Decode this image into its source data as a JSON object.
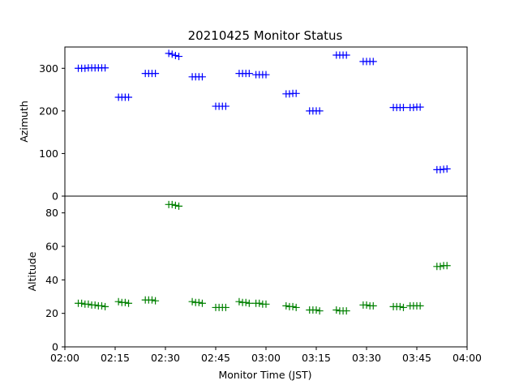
{
  "title": "20210425 Monitor Status",
  "chart_data": [
    {
      "type": "scatter",
      "marker": "+",
      "ylabel": "Azimuth",
      "ylim": [
        0,
        350
      ],
      "yticks": [
        "0",
        "100",
        "200",
        "300"
      ],
      "color": "#0000ff",
      "points": [
        {
          "x": "02:04",
          "y": 300
        },
        {
          "x": "02:05",
          "y": 300
        },
        {
          "x": "02:06",
          "y": 300
        },
        {
          "x": "02:07",
          "y": 301
        },
        {
          "x": "02:08",
          "y": 301
        },
        {
          "x": "02:09",
          "y": 301
        },
        {
          "x": "02:10",
          "y": 301
        },
        {
          "x": "02:11",
          "y": 301
        },
        {
          "x": "02:12",
          "y": 301
        },
        {
          "x": "02:16",
          "y": 232
        },
        {
          "x": "02:17",
          "y": 232
        },
        {
          "x": "02:18",
          "y": 232
        },
        {
          "x": "02:19",
          "y": 232
        },
        {
          "x": "02:24",
          "y": 288
        },
        {
          "x": "02:25",
          "y": 288
        },
        {
          "x": "02:26",
          "y": 288
        },
        {
          "x": "02:27",
          "y": 288
        },
        {
          "x": "02:31",
          "y": 335
        },
        {
          "x": "02:32",
          "y": 333
        },
        {
          "x": "02:33",
          "y": 330
        },
        {
          "x": "02:34",
          "y": 328
        },
        {
          "x": "02:38",
          "y": 280
        },
        {
          "x": "02:39",
          "y": 280
        },
        {
          "x": "02:40",
          "y": 280
        },
        {
          "x": "02:41",
          "y": 280
        },
        {
          "x": "02:45",
          "y": 211
        },
        {
          "x": "02:46",
          "y": 211
        },
        {
          "x": "02:47",
          "y": 211
        },
        {
          "x": "02:48",
          "y": 211
        },
        {
          "x": "02:52",
          "y": 288
        },
        {
          "x": "02:53",
          "y": 288
        },
        {
          "x": "02:54",
          "y": 288
        },
        {
          "x": "02:55",
          "y": 288
        },
        {
          "x": "02:57",
          "y": 285
        },
        {
          "x": "02:58",
          "y": 285
        },
        {
          "x": "02:59",
          "y": 285
        },
        {
          "x": "03:00",
          "y": 285
        },
        {
          "x": "03:06",
          "y": 240
        },
        {
          "x": "03:07",
          "y": 240
        },
        {
          "x": "03:08",
          "y": 241
        },
        {
          "x": "03:09",
          "y": 241
        },
        {
          "x": "03:13",
          "y": 200
        },
        {
          "x": "03:14",
          "y": 200
        },
        {
          "x": "03:15",
          "y": 200
        },
        {
          "x": "03:16",
          "y": 200
        },
        {
          "x": "03:21",
          "y": 331
        },
        {
          "x": "03:22",
          "y": 331
        },
        {
          "x": "03:23",
          "y": 331
        },
        {
          "x": "03:24",
          "y": 331
        },
        {
          "x": "03:29",
          "y": 316
        },
        {
          "x": "03:30",
          "y": 316
        },
        {
          "x": "03:31",
          "y": 316
        },
        {
          "x": "03:32",
          "y": 316
        },
        {
          "x": "03:38",
          "y": 208
        },
        {
          "x": "03:39",
          "y": 208
        },
        {
          "x": "03:40",
          "y": 208
        },
        {
          "x": "03:41",
          "y": 208
        },
        {
          "x": "03:43",
          "y": 208
        },
        {
          "x": "03:44",
          "y": 208
        },
        {
          "x": "03:45",
          "y": 209
        },
        {
          "x": "03:46",
          "y": 209
        },
        {
          "x": "03:51",
          "y": 62
        },
        {
          "x": "03:52",
          "y": 62
        },
        {
          "x": "03:53",
          "y": 63
        },
        {
          "x": "03:54",
          "y": 64
        }
      ]
    },
    {
      "type": "scatter",
      "marker": "+",
      "ylabel": "Altitude",
      "ylim": [
        0,
        90
      ],
      "yticks": [
        "0",
        "20",
        "40",
        "60",
        "80"
      ],
      "color": "#008000",
      "points": [
        {
          "x": "02:04",
          "y": 26
        },
        {
          "x": "02:05",
          "y": 26
        },
        {
          "x": "02:06",
          "y": 25.5
        },
        {
          "x": "02:07",
          "y": 25.5
        },
        {
          "x": "02:08",
          "y": 25
        },
        {
          "x": "02:09",
          "y": 25
        },
        {
          "x": "02:10",
          "y": 24.5
        },
        {
          "x": "02:11",
          "y": 24.5
        },
        {
          "x": "02:12",
          "y": 24
        },
        {
          "x": "02:16",
          "y": 27
        },
        {
          "x": "02:17",
          "y": 26.5
        },
        {
          "x": "02:18",
          "y": 26.5
        },
        {
          "x": "02:19",
          "y": 26
        },
        {
          "x": "02:24",
          "y": 28
        },
        {
          "x": "02:25",
          "y": 28
        },
        {
          "x": "02:26",
          "y": 28
        },
        {
          "x": "02:27",
          "y": 27.5
        },
        {
          "x": "02:31",
          "y": 85
        },
        {
          "x": "02:32",
          "y": 85
        },
        {
          "x": "02:33",
          "y": 84.5
        },
        {
          "x": "02:34",
          "y": 84
        },
        {
          "x": "02:38",
          "y": 27
        },
        {
          "x": "02:39",
          "y": 26.5
        },
        {
          "x": "02:40",
          "y": 26.5
        },
        {
          "x": "02:41",
          "y": 26
        },
        {
          "x": "02:45",
          "y": 23.5
        },
        {
          "x": "02:46",
          "y": 23.5
        },
        {
          "x": "02:47",
          "y": 23.5
        },
        {
          "x": "02:48",
          "y": 23.5
        },
        {
          "x": "02:52",
          "y": 27
        },
        {
          "x": "02:53",
          "y": 26.5
        },
        {
          "x": "02:54",
          "y": 26.5
        },
        {
          "x": "02:55",
          "y": 26
        },
        {
          "x": "02:57",
          "y": 26
        },
        {
          "x": "02:58",
          "y": 26
        },
        {
          "x": "02:59",
          "y": 25.5
        },
        {
          "x": "03:00",
          "y": 25.5
        },
        {
          "x": "03:06",
          "y": 24.5
        },
        {
          "x": "03:07",
          "y": 24
        },
        {
          "x": "03:08",
          "y": 24
        },
        {
          "x": "03:09",
          "y": 23.5
        },
        {
          "x": "03:13",
          "y": 22
        },
        {
          "x": "03:14",
          "y": 22
        },
        {
          "x": "03:15",
          "y": 22
        },
        {
          "x": "03:16",
          "y": 21.5
        },
        {
          "x": "03:21",
          "y": 22
        },
        {
          "x": "03:22",
          "y": 21.5
        },
        {
          "x": "03:23",
          "y": 21.5
        },
        {
          "x": "03:24",
          "y": 21.5
        },
        {
          "x": "03:29",
          "y": 25
        },
        {
          "x": "03:30",
          "y": 25
        },
        {
          "x": "03:31",
          "y": 24.5
        },
        {
          "x": "03:32",
          "y": 24.5
        },
        {
          "x": "03:38",
          "y": 24
        },
        {
          "x": "03:39",
          "y": 24
        },
        {
          "x": "03:40",
          "y": 24
        },
        {
          "x": "03:41",
          "y": 23.5
        },
        {
          "x": "03:43",
          "y": 24.5
        },
        {
          "x": "03:44",
          "y": 24.5
        },
        {
          "x": "03:45",
          "y": 24.5
        },
        {
          "x": "03:46",
          "y": 24.5
        },
        {
          "x": "03:51",
          "y": 48
        },
        {
          "x": "03:52",
          "y": 48
        },
        {
          "x": "03:53",
          "y": 48.5
        },
        {
          "x": "03:54",
          "y": 48.5
        }
      ]
    }
  ],
  "x_axis": {
    "label": "Monitor Time (JST)",
    "range": [
      "02:00",
      "04:00"
    ],
    "ticks": [
      "02:00",
      "02:15",
      "02:30",
      "02:45",
      "03:00",
      "03:15",
      "03:30",
      "03:45",
      "04:00"
    ]
  }
}
